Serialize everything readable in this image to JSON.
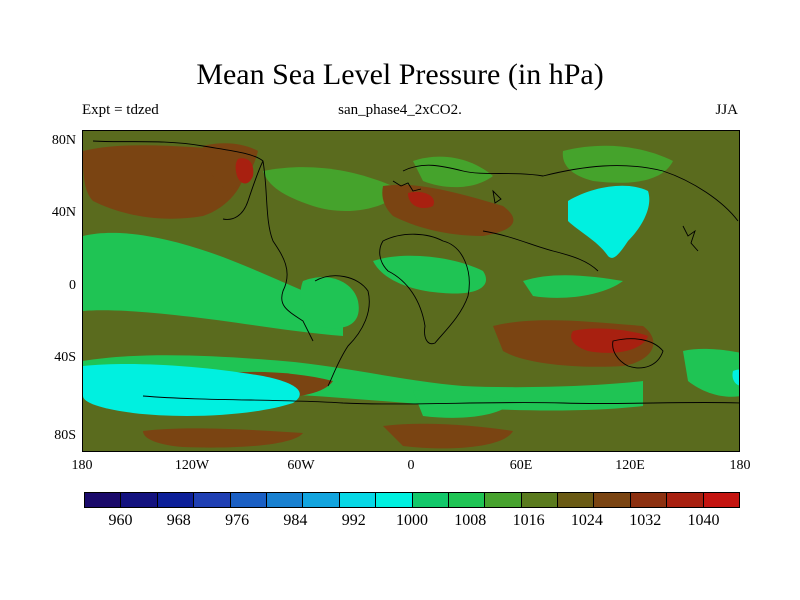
{
  "title": "Mean Sea Level Pressure (in hPa)",
  "subtitle": "san_phase4_2xCO2.",
  "left_label": "Expt = tdzed",
  "right_label": "JJA",
  "lat_labels": [
    "80N",
    "40N",
    "0",
    "40S",
    "80S"
  ],
  "lon_labels": [
    "180",
    "120W",
    "60W",
    "0",
    "60E",
    "120E",
    "180"
  ],
  "colorbar": {
    "colors": [
      "#1a0a6b",
      "#13127f",
      "#0c1f99",
      "#1f3fb3",
      "#1a5fc4",
      "#1880d0",
      "#12a4de",
      "#06d8e6",
      "#00f0e0",
      "#12c86a",
      "#1fc454",
      "#47a22e",
      "#5a7a1e",
      "#6a5a14",
      "#7a4412",
      "#8c3010",
      "#a82010",
      "#c41410"
    ],
    "labels": [
      "960",
      "968",
      "976",
      "984",
      "992",
      "1000",
      "1008",
      "1016",
      "1024",
      "1032",
      "1040"
    ]
  },
  "palette": {
    "base": "#5a6b1e",
    "green": "#1fc454",
    "mid_green": "#45a32c",
    "brown": "#7a4412",
    "red": "#a82010",
    "cyan": "#00f0e0"
  }
}
